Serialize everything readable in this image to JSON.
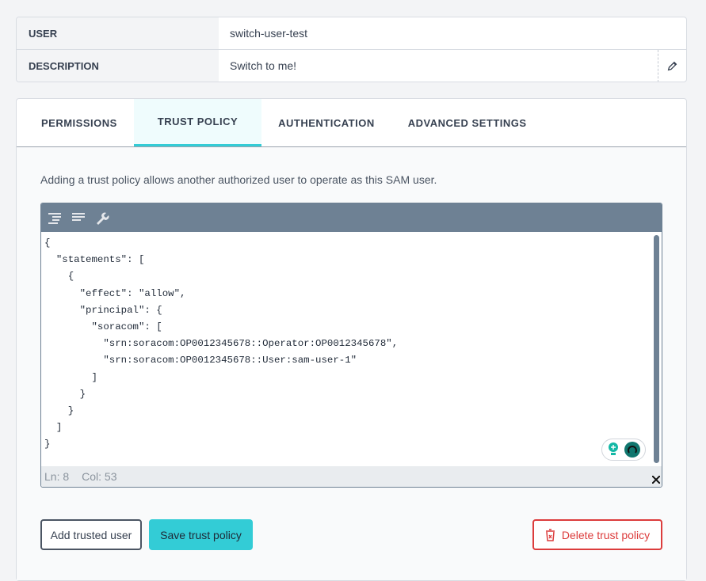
{
  "info": {
    "user_label": "USER",
    "user_value": "switch-user-test",
    "description_label": "DESCRIPTION",
    "description_value": "Switch to me!"
  },
  "tabs": [
    {
      "label": "PERMISSIONS"
    },
    {
      "label": "TRUST POLICY",
      "active": true
    },
    {
      "label": "AUTHENTICATION"
    },
    {
      "label": "ADVANCED SETTINGS"
    }
  ],
  "trust": {
    "description": "Adding a trust policy allows another authorized user to operate as this SAM user.",
    "editor": {
      "toolbar_icons": [
        "format-icon",
        "compact-icon",
        "repair-icon"
      ],
      "lines": [
        "{",
        "  \"statements\": [",
        "    {",
        "      \"effect\": \"allow\",",
        "      \"principal\": {",
        "        \"soracom\": [",
        "          \"srn:soracom:OP0012345678::Operator:OP0012345678\",",
        "          \"srn:soracom:OP0012345678::User:sam-user-1\"",
        "        ]",
        "      }",
        "    }",
        "  ]",
        "}"
      ],
      "status_line": "Ln: 8",
      "status_col": "Col: 53"
    },
    "buttons": {
      "add": "Add trusted user",
      "save": "Save trust policy",
      "delete": "Delete trust policy"
    },
    "colors": {
      "accent": "#33ccd6",
      "danger": "#dc3c3c",
      "toolbar": "#6e8194"
    }
  }
}
